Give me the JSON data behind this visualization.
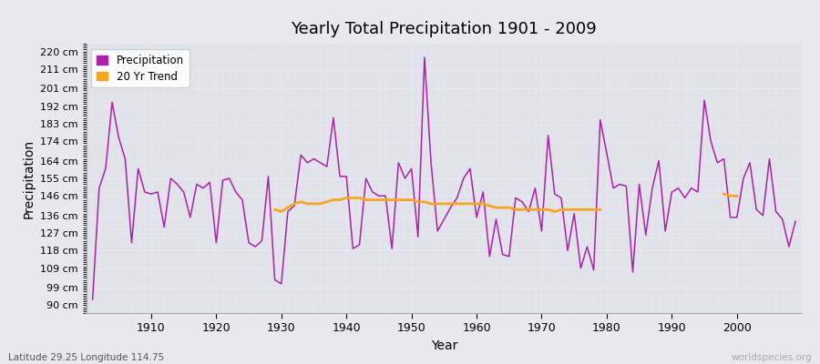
{
  "title": "Yearly Total Precipitation 1901 - 2009",
  "xlabel": "Year",
  "ylabel": "Precipitation",
  "subtitle_left": "Latitude 29.25 Longitude 114.75",
  "subtitle_right": "worldspecies.org",
  "bg_color": "#e8e8ee",
  "plot_bg_color": "#e0e0e8",
  "grid_color": "#f0f0f4",
  "line_color": "#aa22aa",
  "trend_color": "#f5a623",
  "years": [
    1901,
    1902,
    1903,
    1904,
    1905,
    1906,
    1907,
    1908,
    1909,
    1910,
    1911,
    1912,
    1913,
    1914,
    1915,
    1916,
    1917,
    1918,
    1919,
    1920,
    1921,
    1922,
    1923,
    1924,
    1925,
    1926,
    1927,
    1928,
    1929,
    1930,
    1931,
    1932,
    1933,
    1934,
    1935,
    1936,
    1937,
    1938,
    1939,
    1940,
    1941,
    1942,
    1943,
    1944,
    1945,
    1946,
    1947,
    1948,
    1949,
    1950,
    1951,
    1952,
    1953,
    1954,
    1955,
    1956,
    1957,
    1958,
    1959,
    1960,
    1961,
    1962,
    1963,
    1964,
    1965,
    1966,
    1967,
    1968,
    1969,
    1970,
    1971,
    1972,
    1973,
    1974,
    1975,
    1976,
    1977,
    1978,
    1979,
    1980,
    1981,
    1982,
    1983,
    1984,
    1985,
    1986,
    1987,
    1988,
    1989,
    1990,
    1991,
    1992,
    1993,
    1994,
    1995,
    1996,
    1997,
    1998,
    1999,
    2000,
    2001,
    2002,
    2003,
    2004,
    2005,
    2006,
    2007,
    2008,
    2009
  ],
  "precip": [
    93,
    150,
    160,
    194,
    176,
    165,
    122,
    160,
    148,
    147,
    148,
    130,
    155,
    152,
    148,
    135,
    152,
    150,
    153,
    122,
    154,
    155,
    148,
    144,
    122,
    120,
    123,
    156,
    103,
    101,
    138,
    141,
    167,
    163,
    165,
    163,
    161,
    186,
    156,
    156,
    119,
    121,
    155,
    148,
    146,
    146,
    119,
    163,
    155,
    160,
    125,
    217,
    163,
    128,
    134,
    140,
    145,
    155,
    160,
    135,
    148,
    115,
    134,
    116,
    115,
    145,
    143,
    138,
    150,
    128,
    177,
    147,
    145,
    118,
    137,
    109,
    120,
    108,
    185,
    168,
    150,
    152,
    151,
    107,
    152,
    126,
    150,
    164,
    128,
    148,
    150,
    145,
    150,
    148,
    195,
    174,
    163,
    165,
    135,
    135,
    155,
    163,
    139,
    136,
    165,
    138,
    134,
    120,
    133
  ],
  "trend_seg1_years": [
    1929,
    1930,
    1931,
    1932,
    1933,
    1934,
    1935,
    1936,
    1937,
    1938,
    1939,
    1940,
    1941,
    1942,
    1943,
    1944,
    1945,
    1946,
    1947,
    1948,
    1949,
    1950,
    1951,
    1952,
    1953,
    1954,
    1955,
    1956,
    1957,
    1958,
    1959,
    1960,
    1961,
    1962,
    1963,
    1964,
    1965,
    1966,
    1967,
    1968,
    1969,
    1970,
    1971,
    1972,
    1973,
    1974,
    1975,
    1976,
    1977,
    1978,
    1979
  ],
  "trend_seg1_values": [
    139,
    138,
    140,
    142,
    143,
    142,
    142,
    142,
    143,
    144,
    144,
    145,
    145,
    145,
    144,
    144,
    144,
    144,
    144,
    144,
    144,
    144,
    143,
    143,
    142,
    142,
    142,
    142,
    142,
    142,
    142,
    142,
    142,
    141,
    140,
    140,
    140,
    139,
    139,
    139,
    139,
    139,
    139,
    138,
    139,
    139,
    139,
    139,
    139,
    139,
    139
  ],
  "trend_seg2_years": [
    1998,
    1999,
    2000
  ],
  "trend_seg2_values": [
    147,
    146,
    146
  ],
  "yticks": [
    90,
    99,
    109,
    118,
    127,
    136,
    146,
    155,
    164,
    174,
    183,
    192,
    201,
    211,
    220
  ],
  "ytick_labels": [
    "90 cm",
    "99 cm",
    "109 cm",
    "118 cm",
    "127 cm",
    "136 cm",
    "146 cm",
    "155 cm",
    "164 cm",
    "174 cm",
    "183 cm",
    "192 cm",
    "201 cm",
    "211 cm",
    "220 cm"
  ],
  "ylim": [
    86,
    224
  ],
  "xlim": [
    1900,
    2010
  ],
  "xticks": [
    1910,
    1920,
    1930,
    1940,
    1950,
    1960,
    1970,
    1980,
    1990,
    2000
  ]
}
